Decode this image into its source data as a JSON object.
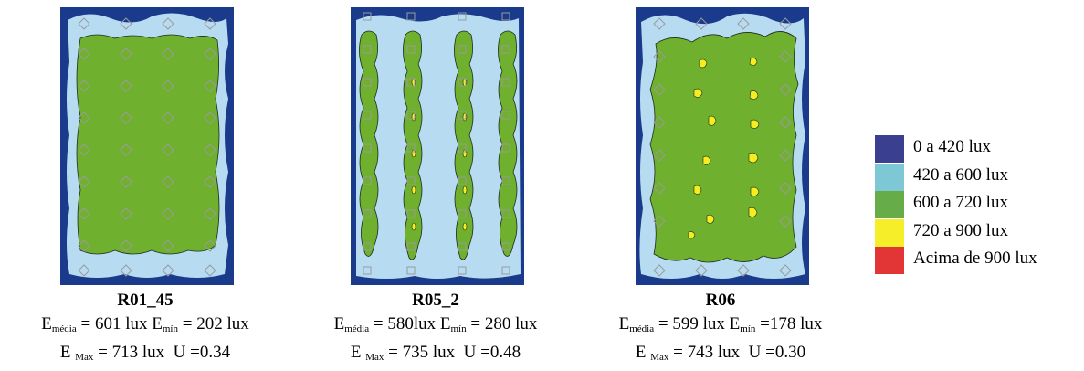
{
  "panels": [
    {
      "title": "R01_45",
      "e_media_label": "E",
      "e_media_sub": "média",
      "e_media_value": "= 601 lux",
      "e_min_label": "E",
      "e_min_sub": "mín",
      "e_min_value": "= 202 lux",
      "e_max_label": "E",
      "e_max_sub": "Max",
      "e_max_value": "= 713 lux",
      "u_value": "U =0.34"
    },
    {
      "title": "R05_2",
      "e_media_label": "E",
      "e_media_sub": "média",
      "e_media_value": "= 580lux",
      "e_min_label": "E",
      "e_min_sub": "mín",
      "e_min_value": "= 280 lux",
      "e_max_label": "E",
      "e_max_sub": "Max",
      "e_max_value": "= 735 lux",
      "u_value": "U =0.48"
    },
    {
      "title": "R06",
      "e_media_label": "E",
      "e_media_sub": "média",
      "e_media_value": "= 599 lux",
      "e_min_label": "E",
      "e_min_sub": "mín",
      "e_min_value": "=178 lux",
      "e_max_label": "E",
      "e_max_sub": "Max",
      "e_max_value": "= 743 lux",
      "u_value": "U =0.30"
    }
  ],
  "legend": [
    {
      "label": "0 a 420 lux",
      "color": "#3b3f8f"
    },
    {
      "label": "420 a 600 lux",
      "color": "#7ec8d6"
    },
    {
      "label": "600 a 720 lux",
      "color": "#66ad4a"
    },
    {
      "label": "720 a 900 lux",
      "color": "#f5ee28"
    },
    {
      "label": "Acima de 900 lux",
      "color": "#e23535"
    }
  ],
  "map_colors": {
    "dark_blue": "#1a3a8c",
    "light_blue": "#b7dcf2",
    "green": "#6fb02f",
    "yellow": "#f4ee21",
    "grid_stroke": "#9a9a9a",
    "contour": "#1f2a1f"
  }
}
